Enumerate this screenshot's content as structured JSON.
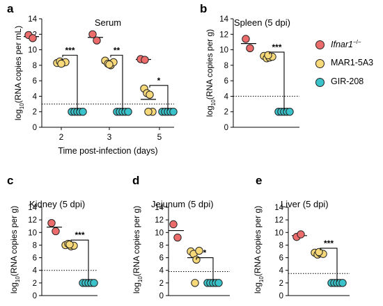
{
  "colors": {
    "ifnar": "#EC6B6B",
    "mar": "#F7D97A",
    "gir": "#39C2C9",
    "stroke": "#222222"
  },
  "legend": [
    {
      "key": "ifnar",
      "label": "Ifnar1",
      "sup": "−/−"
    },
    {
      "key": "mar",
      "label": "MAR1-5A3",
      "sup": ""
    },
    {
      "key": "gir",
      "label": "GIR-208",
      "sup": ""
    }
  ],
  "chart_data": [
    {
      "panel": "a",
      "type": "scatter",
      "title": "Serum",
      "ylabel_pre": "log",
      "ylabel_sub": "10",
      "ylabel_post": "(RNA copies per mL)",
      "xlabel": "Time post-infection (days)",
      "yticks": [
        0,
        2,
        4,
        6,
        8,
        10,
        12,
        14
      ],
      "ylim": [
        0,
        14
      ],
      "threshold": 3.0,
      "groups": [
        {
          "label": "2",
          "ifnar": [
            11.9,
            11.5
          ],
          "ifnar_mean": 11.7,
          "mar": [
            8.3,
            8.5,
            8.3,
            8.4,
            8.2
          ],
          "mar_mean": 8.35,
          "gir": [
            2,
            2,
            2,
            2,
            2
          ],
          "gir_mean": 2,
          "sig": "***",
          "bracket_top": 9.3
        },
        {
          "label": "3",
          "ifnar": [
            12.0,
            11.2
          ],
          "ifnar_mean": 11.6,
          "mar": [
            8.6,
            8.2,
            8.0,
            8.4,
            8.1
          ],
          "mar_mean": 8.3,
          "gir": [
            2,
            2,
            2,
            2,
            2
          ],
          "gir_mean": 2,
          "sig": "**",
          "bracket_top": 9.3
        },
        {
          "label": "5",
          "ifnar": [
            8.8,
            8.7
          ],
          "ifnar_mean": 8.75,
          "mar": [
            5.0,
            4.4,
            4.2,
            2.0,
            2.0
          ],
          "mar_mean": 3.6,
          "gir": [
            2,
            2,
            2,
            2,
            2
          ],
          "gir_mean": 2,
          "sig": "*",
          "bracket_top": 5.4
        }
      ]
    },
    {
      "panel": "b",
      "type": "scatter",
      "title": "Spleen (5 dpi)",
      "ylabel_pre": "log",
      "ylabel_sub": "10",
      "ylabel_post": "(RNA copies per g)",
      "yticks": [
        0,
        2,
        4,
        6,
        8,
        10,
        12,
        14
      ],
      "ylim": [
        0,
        14
      ],
      "threshold": 4.0,
      "groups": [
        {
          "label": "",
          "ifnar": [
            11.4,
            10.2
          ],
          "ifnar_mean": 10.8,
          "mar": [
            9.2,
            8.9,
            9.0,
            9.1,
            9.3
          ],
          "mar_mean": 9.1,
          "gir": [
            2,
            2,
            2,
            2,
            2
          ],
          "gir_mean": 2,
          "sig": "***",
          "bracket_top": 9.7
        }
      ]
    },
    {
      "panel": "c",
      "type": "scatter",
      "title": "Kidney (5 dpi)",
      "ylabel_pre": "log",
      "ylabel_sub": "10",
      "ylabel_post": "(RNA copies per g)",
      "yticks": [
        0,
        2,
        4,
        6,
        8,
        10,
        12,
        14
      ],
      "ylim": [
        0,
        14
      ],
      "threshold": 4.0,
      "groups": [
        {
          "label": "",
          "ifnar": [
            11.5,
            10.2
          ],
          "ifnar_mean": 10.85,
          "mar": [
            8.0,
            8.2,
            7.8,
            7.9,
            8.1
          ],
          "mar_mean": 8.0,
          "gir": [
            2,
            2,
            2,
            2,
            2
          ],
          "gir_mean": 2,
          "sig": "***",
          "bracket_top": 8.8
        }
      ]
    },
    {
      "panel": "d",
      "type": "scatter",
      "title": "Jejunum (5 dpi)",
      "ylabel_pre": "log",
      "ylabel_sub": "10",
      "ylabel_post": "(RNA copies per g)",
      "yticks": [
        0,
        2,
        4,
        6,
        8,
        10,
        12,
        14
      ],
      "ylim": [
        0,
        14
      ],
      "threshold": 3.8,
      "groups": [
        {
          "label": "",
          "ifnar": [
            11.3,
            9.2
          ],
          "ifnar_mean": 10.3,
          "mar": [
            7.0,
            6.6,
            5.7,
            7.1,
            2.0
          ],
          "mar_mean": 6.0,
          "gir": [
            2,
            2,
            2,
            2,
            2
          ],
          "gir_mean": 2,
          "sig": "*",
          "bracket_top": 6.0
        }
      ]
    },
    {
      "panel": "e",
      "type": "scatter",
      "title": "Liver (5 dpi)",
      "ylabel_pre": "log",
      "ylabel_sub": "10",
      "ylabel_post": "(RNA copies per g)",
      "yticks": [
        0,
        2,
        4,
        6,
        8,
        10,
        12,
        14
      ],
      "ylim": [
        0,
        14
      ],
      "threshold": 3.5,
      "groups": [
        {
          "label": "",
          "ifnar": [
            9.3,
            9.7
          ],
          "ifnar_mean": 9.5,
          "mar": [
            6.8,
            6.5,
            6.7,
            6.6,
            6.9
          ],
          "mar_mean": 6.7,
          "gir": [
            2,
            2,
            2,
            2,
            2
          ],
          "gir_mean": 2,
          "sig": "***",
          "bracket_top": 7.5
        }
      ]
    }
  ]
}
